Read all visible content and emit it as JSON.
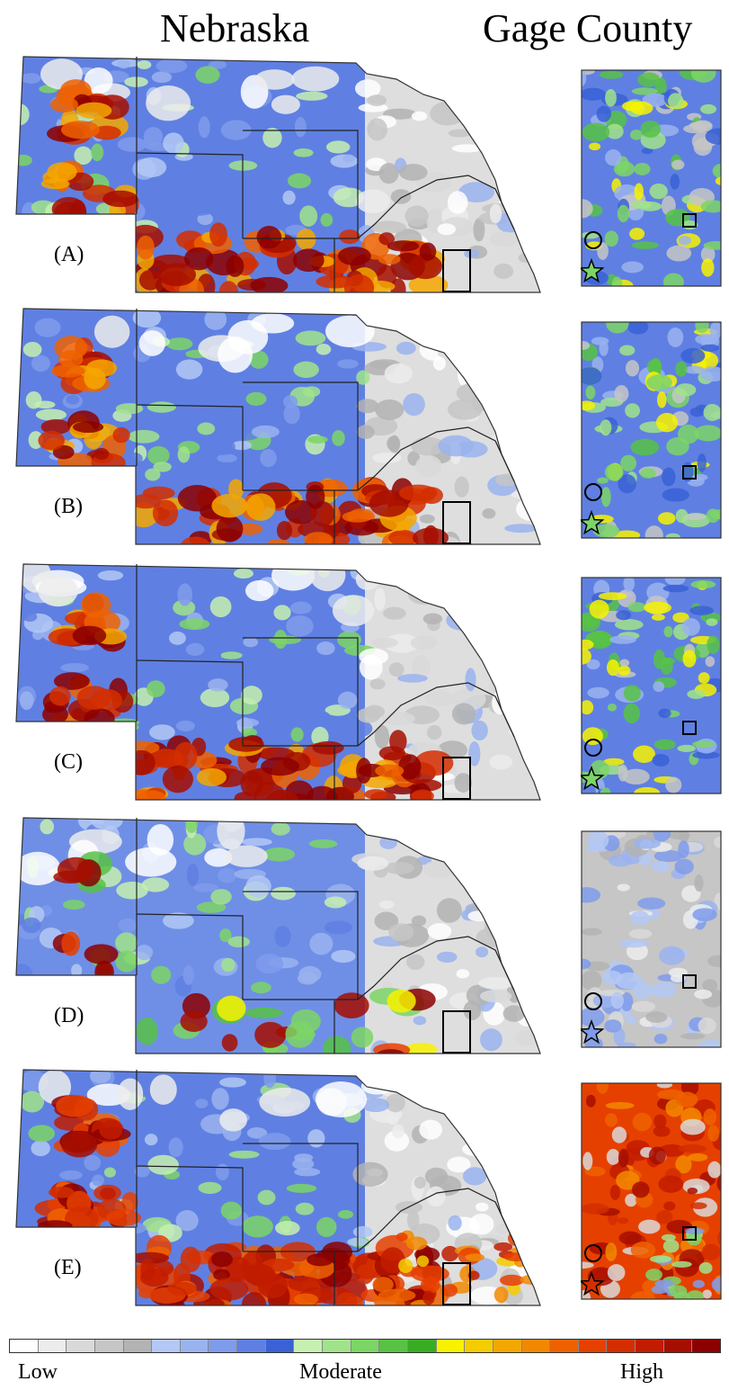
{
  "titles": {
    "left": "Nebraska",
    "right": "Gage County"
  },
  "panels": [
    {
      "label": "(A)",
      "level": "mixed"
    },
    {
      "label": "(B)",
      "level": "mixed"
    },
    {
      "label": "(C)",
      "level": "mixed"
    },
    {
      "label": "(D)",
      "level": "low"
    },
    {
      "label": "(E)",
      "level": "high"
    }
  ],
  "legend": {
    "low_label": "Low",
    "moderate_label": "Moderate",
    "high_label": "High",
    "colors": [
      "#ffffff",
      "#ececec",
      "#d9d9d9",
      "#c6c6c6",
      "#b3b3b3",
      "#b3c8f5",
      "#9ab3ef",
      "#7f9beb",
      "#5f80e2",
      "#3a62d6",
      "#c6f0b0",
      "#a1e38a",
      "#7dd566",
      "#57c244",
      "#38ad23",
      "#f7f200",
      "#f5cc00",
      "#f4a700",
      "#f28800",
      "#ef6100",
      "#e64000",
      "#d42e00",
      "#c11c00",
      "#a60e00",
      "#8c0000"
    ]
  }
}
